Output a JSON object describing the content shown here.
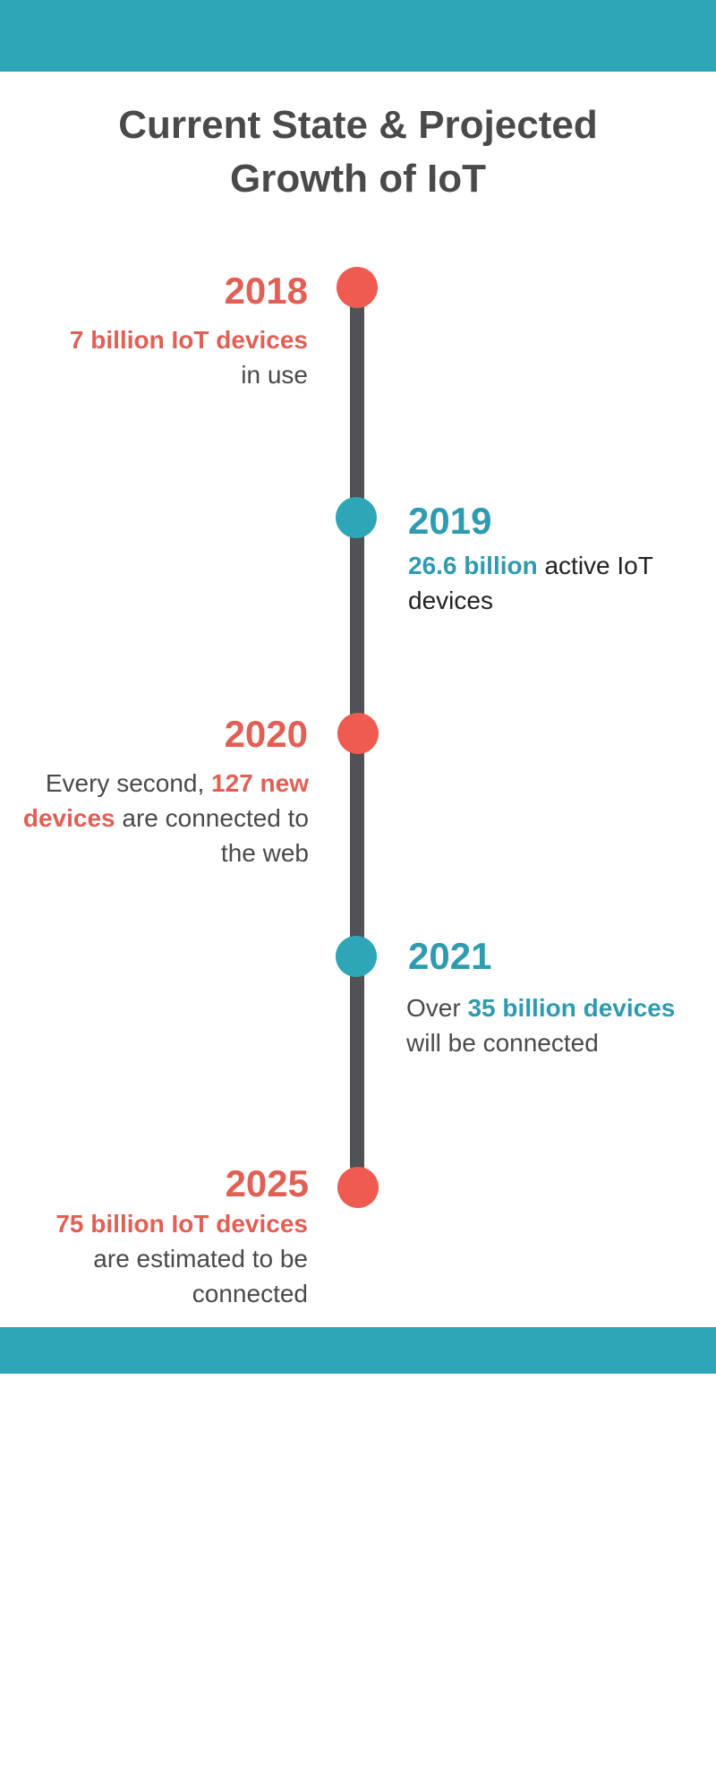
{
  "title": {
    "line1": "Current State & Projected",
    "line2": "Growth of IoT"
  },
  "colors": {
    "band": "#2fa5b8",
    "red": "#ef5b50",
    "teal": "#2fa5b8",
    "line": "#515256",
    "text": "#4a4a4a"
  },
  "timeline": [
    {
      "year": "2018",
      "highlight": "7 billion IoT devices",
      "text_after": "in use"
    },
    {
      "year": "2019",
      "highlight": "26.6 billion",
      "text_after": " active IoT devices"
    },
    {
      "year": "2020",
      "text_before": "Every second, ",
      "highlight": "127 new devices",
      "text_after": " are connected to the web"
    },
    {
      "year": "2021",
      "text_before": "Over ",
      "highlight": "35 billion devices",
      "text_after": " will be connected"
    },
    {
      "year": "2025",
      "highlight": "75 billion IoT devices",
      "text_after": "are estimated to be connected"
    }
  ]
}
